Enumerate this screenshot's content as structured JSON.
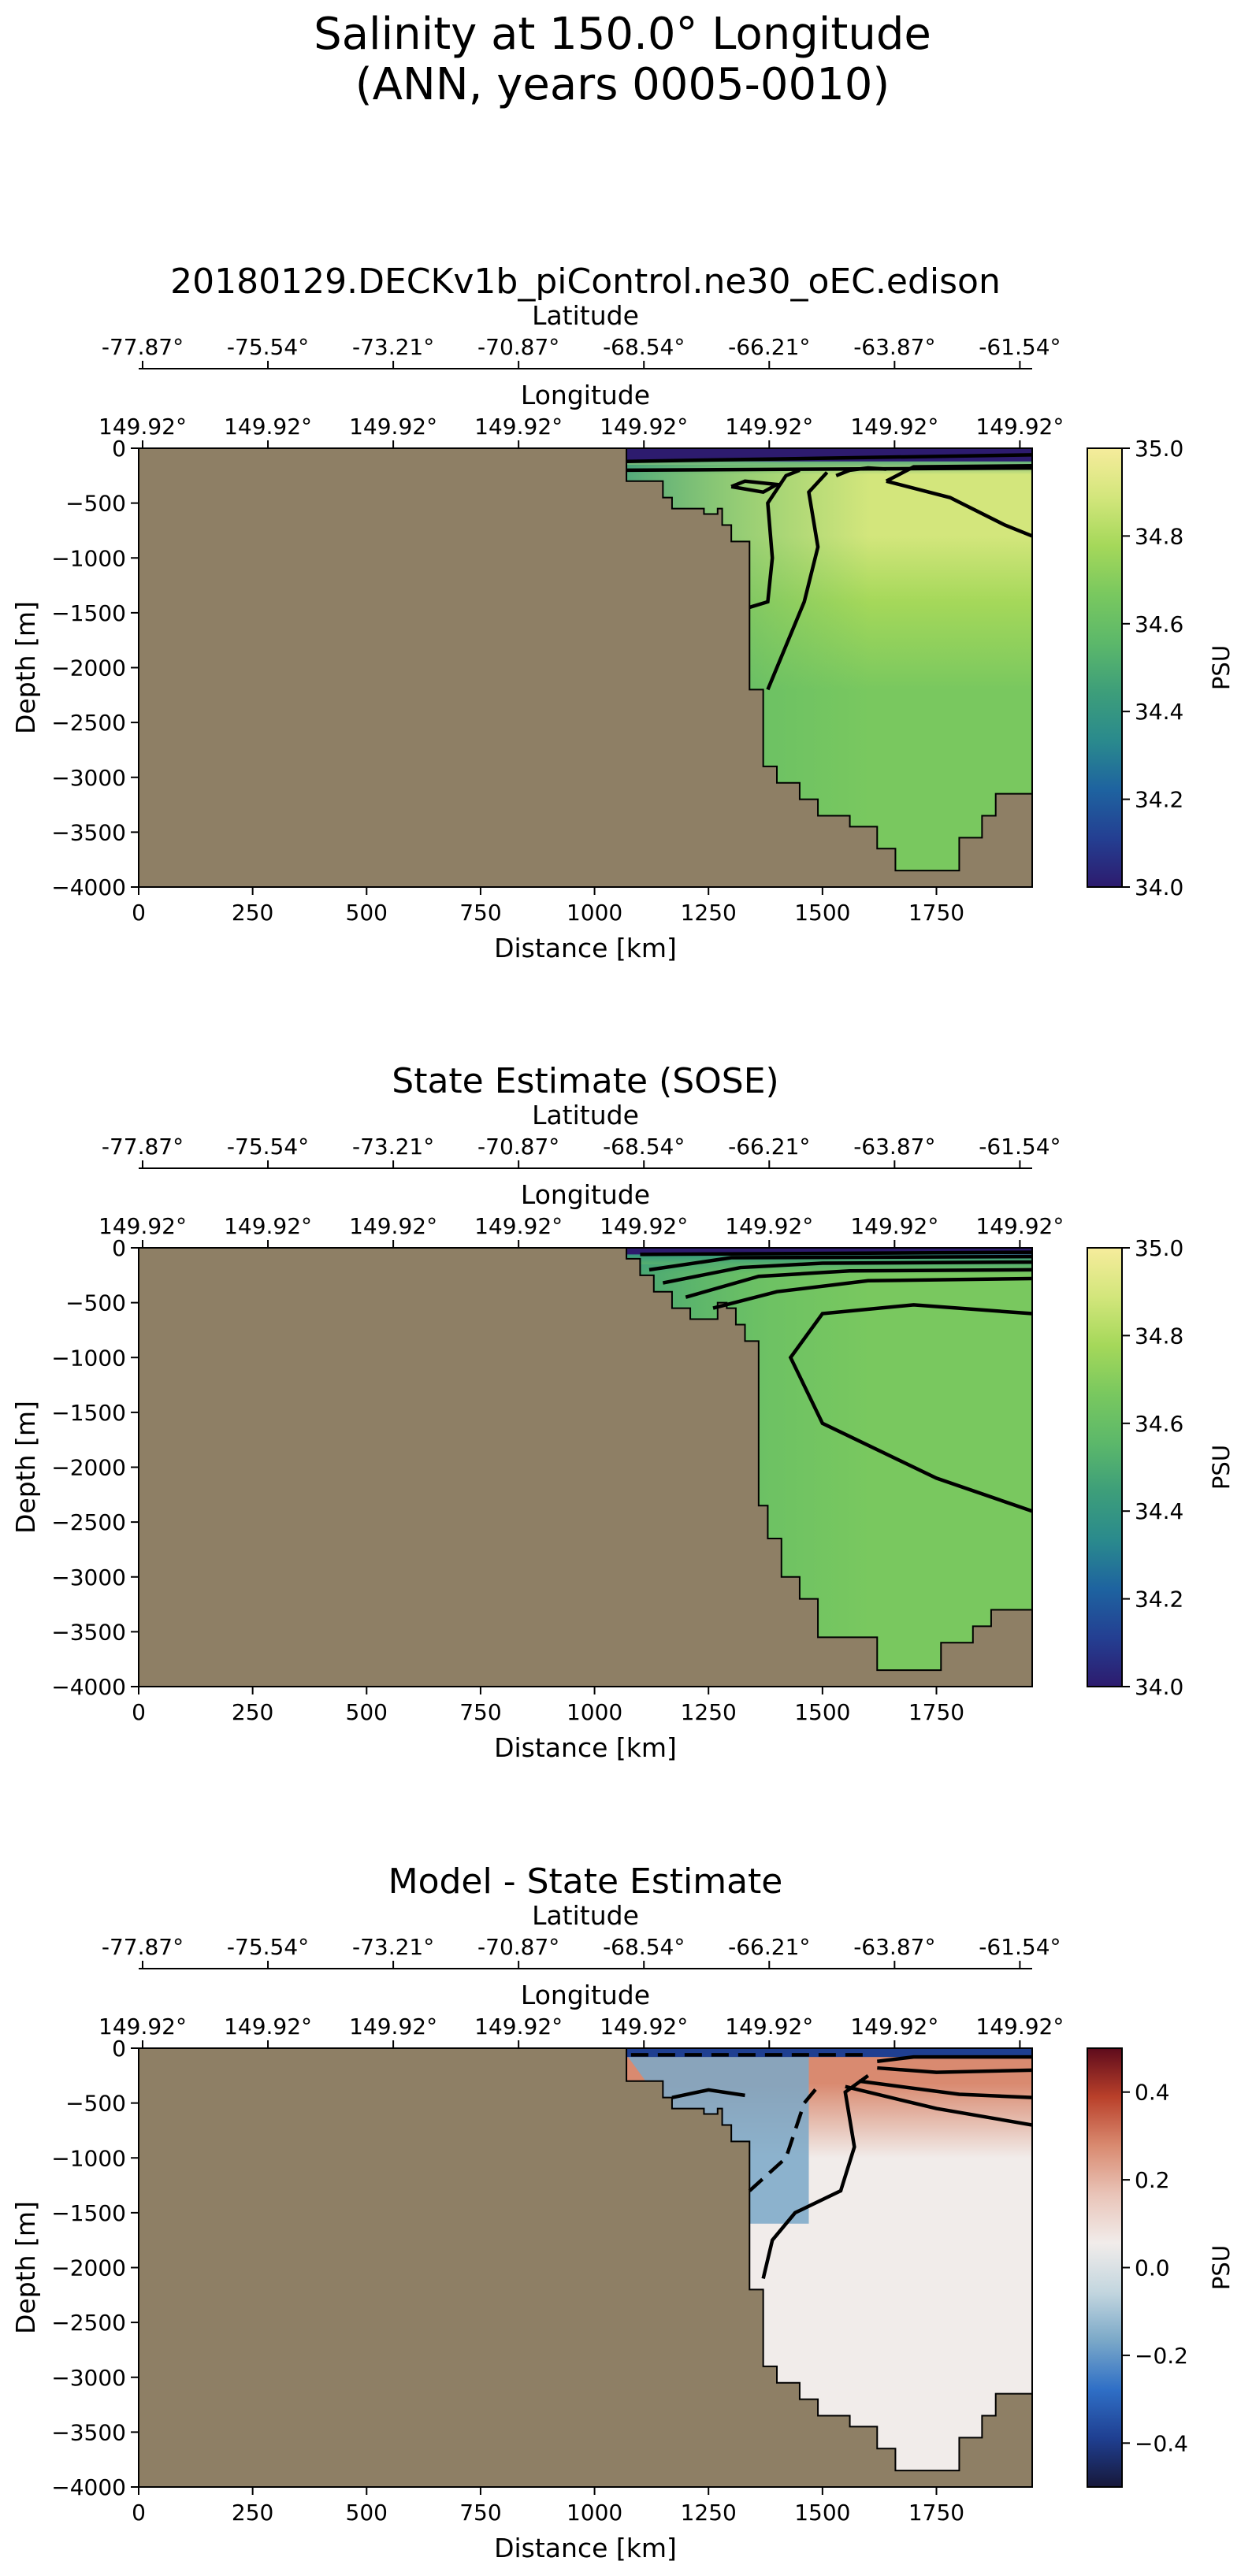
{
  "figure": {
    "title_line1": "Salinity at 150.0° Longitude",
    "title_line2": "(ANN, years 0005-0010)"
  },
  "colors": {
    "land": "#8e7f65",
    "contour": "#000000",
    "viridis_ramp": [
      "#2d1b6e",
      "#243f92",
      "#1e63a0",
      "#2a8a8d",
      "#3d9e7a",
      "#5cb86a",
      "#79c85f",
      "#a5d85a",
      "#d3e67c",
      "#f6ec9c"
    ],
    "balance_ramp": [
      "#17183a",
      "#1f3f91",
      "#2f6fc6",
      "#7aa8c8",
      "#c3d6df",
      "#f1ecea",
      "#e9c4b8",
      "#d98a70",
      "#b9402a",
      "#5e0b1c"
    ]
  },
  "panels": [
    {
      "title": "20180129.DECKv1b_piControl.ne30_oEC.edison",
      "cb_label": "PSU",
      "cb_ticks": [
        "35.0",
        "34.8",
        "34.6",
        "34.4",
        "34.2",
        "34.0"
      ]
    },
    {
      "title": "State Estimate (SOSE)",
      "cb_label": "PSU",
      "cb_ticks": [
        "35.0",
        "34.8",
        "34.6",
        "34.4",
        "34.2",
        "34.0"
      ]
    },
    {
      "title": "Model - State Estimate",
      "cb_label": "PSU",
      "cb_ticks": [
        "0.4",
        "0.2",
        "0.0",
        "−0.2",
        "−0.4"
      ]
    }
  ],
  "chart_data": [
    {
      "type": "heatmap",
      "title": "20180129.DECKv1b_piControl.ne30_oEC.edison",
      "xlabel": "Distance [km]",
      "ylabel": "Depth [m]",
      "top_axis_1_label": "Latitude",
      "top_axis_2_label": "Longitude",
      "xlim": [
        0,
        1960
      ],
      "ylim": [
        -4000,
        0
      ],
      "x_ticks": [
        "0",
        "250",
        "500",
        "750",
        "1000",
        "1250",
        "1500",
        "1750"
      ],
      "y_ticks": [
        "0",
        "−500",
        "−1000",
        "−1500",
        "−2000",
        "−2500",
        "−3000",
        "−3500",
        "−4000"
      ],
      "latitude_ticks": [
        "-77.87°",
        "-75.54°",
        "-73.21°",
        "-70.87°",
        "-68.54°",
        "-66.21°",
        "-63.87°",
        "-61.54°"
      ],
      "longitude_ticks": [
        "149.92°",
        "149.92°",
        "149.92°",
        "149.92°",
        "149.92°",
        "149.92°",
        "149.92°",
        "149.92°"
      ],
      "colorbar": {
        "label": "PSU",
        "min": 34.0,
        "max": 35.0,
        "colormap": "haline",
        "ticks": [
          "35.0",
          "34.8",
          "34.6",
          "34.4",
          "34.2",
          "34.0"
        ]
      },
      "grid": false,
      "bathymetry": [
        [
          1070,
          300
        ],
        [
          1150,
          300
        ],
        [
          1150,
          450
        ],
        [
          1170,
          450
        ],
        [
          1170,
          550
        ],
        [
          1240,
          550
        ],
        [
          1240,
          600
        ],
        [
          1270,
          600
        ],
        [
          1270,
          550
        ],
        [
          1280,
          550
        ],
        [
          1280,
          700
        ],
        [
          1300,
          700
        ],
        [
          1300,
          850
        ],
        [
          1340,
          850
        ],
        [
          1340,
          2200
        ],
        [
          1370,
          2200
        ],
        [
          1370,
          2900
        ],
        [
          1400,
          2900
        ],
        [
          1400,
          3050
        ],
        [
          1450,
          3050
        ],
        [
          1450,
          3200
        ],
        [
          1490,
          3200
        ],
        [
          1490,
          3350
        ],
        [
          1560,
          3350
        ],
        [
          1560,
          3450
        ],
        [
          1620,
          3450
        ],
        [
          1620,
          3650
        ],
        [
          1660,
          3650
        ],
        [
          1660,
          3850
        ],
        [
          1800,
          3850
        ],
        [
          1800,
          3550
        ],
        [
          1850,
          3550
        ],
        [
          1850,
          3350
        ],
        [
          1880,
          3350
        ],
        [
          1880,
          3150
        ],
        [
          1960,
          3150
        ]
      ],
      "salinity_profile": {
        "surface": 34.1,
        "subsurface_max": 34.85,
        "deep": 34.7
      }
    },
    {
      "type": "heatmap",
      "title": "State Estimate (SOSE)",
      "xlabel": "Distance [km]",
      "ylabel": "Depth [m]",
      "top_axis_1_label": "Latitude",
      "top_axis_2_label": "Longitude",
      "xlim": [
        0,
        1960
      ],
      "ylim": [
        -4000,
        0
      ],
      "x_ticks": [
        "0",
        "250",
        "500",
        "750",
        "1000",
        "1250",
        "1500",
        "1750"
      ],
      "y_ticks": [
        "0",
        "−500",
        "−1000",
        "−1500",
        "−2000",
        "−2500",
        "−3000",
        "−3500",
        "−4000"
      ],
      "latitude_ticks": [
        "-77.87°",
        "-75.54°",
        "-73.21°",
        "-70.87°",
        "-68.54°",
        "-66.21°",
        "-63.87°",
        "-61.54°"
      ],
      "longitude_ticks": [
        "149.92°",
        "149.92°",
        "149.92°",
        "149.92°",
        "149.92°",
        "149.92°",
        "149.92°",
        "149.92°"
      ],
      "colorbar": {
        "label": "PSU",
        "min": 34.0,
        "max": 35.0,
        "colormap": "haline",
        "ticks": [
          "35.0",
          "34.8",
          "34.6",
          "34.4",
          "34.2",
          "34.0"
        ]
      },
      "grid": false,
      "bathymetry": [
        [
          1070,
          100
        ],
        [
          1100,
          100
        ],
        [
          1100,
          250
        ],
        [
          1130,
          250
        ],
        [
          1130,
          400
        ],
        [
          1170,
          400
        ],
        [
          1170,
          550
        ],
        [
          1210,
          550
        ],
        [
          1210,
          650
        ],
        [
          1270,
          650
        ],
        [
          1270,
          500
        ],
        [
          1290,
          500
        ],
        [
          1290,
          550
        ],
        [
          1310,
          550
        ],
        [
          1310,
          700
        ],
        [
          1330,
          700
        ],
        [
          1330,
          850
        ],
        [
          1360,
          850
        ],
        [
          1360,
          2350
        ],
        [
          1380,
          2350
        ],
        [
          1380,
          2650
        ],
        [
          1410,
          2650
        ],
        [
          1410,
          3000
        ],
        [
          1450,
          3000
        ],
        [
          1450,
          3200
        ],
        [
          1490,
          3200
        ],
        [
          1490,
          3550
        ],
        [
          1620,
          3550
        ],
        [
          1620,
          3850
        ],
        [
          1760,
          3850
        ],
        [
          1760,
          3600
        ],
        [
          1830,
          3600
        ],
        [
          1830,
          3450
        ],
        [
          1870,
          3450
        ],
        [
          1870,
          3300
        ],
        [
          1960,
          3300
        ]
      ],
      "salinity_profile": {
        "surface": 34.2,
        "subsurface_max": 34.72,
        "deep": 34.67
      }
    },
    {
      "type": "heatmap",
      "title": "Model - State Estimate",
      "xlabel": "Distance [km]",
      "ylabel": "Depth [m]",
      "top_axis_1_label": "Latitude",
      "top_axis_2_label": "Longitude",
      "xlim": [
        0,
        1960
      ],
      "ylim": [
        -4000,
        0
      ],
      "x_ticks": [
        "0",
        "250",
        "500",
        "750",
        "1000",
        "1250",
        "1500",
        "1750"
      ],
      "y_ticks": [
        "0",
        "−500",
        "−1000",
        "−1500",
        "−2000",
        "−2500",
        "−3000",
        "−3500",
        "−4000"
      ],
      "latitude_ticks": [
        "-77.87°",
        "-75.54°",
        "-73.21°",
        "-70.87°",
        "-68.54°",
        "-66.21°",
        "-63.87°",
        "-61.54°"
      ],
      "longitude_ticks": [
        "149.92°",
        "149.92°",
        "149.92°",
        "149.92°",
        "149.92°",
        "149.92°",
        "149.92°",
        "149.92°"
      ],
      "colorbar": {
        "label": "PSU",
        "min": -0.5,
        "max": 0.5,
        "colormap": "balance",
        "ticks": [
          "0.4",
          "0.2",
          "0.0",
          "−0.2",
          "−0.4"
        ]
      },
      "grid": false,
      "bathymetry": [
        [
          1070,
          300
        ],
        [
          1150,
          300
        ],
        [
          1150,
          450
        ],
        [
          1170,
          450
        ],
        [
          1170,
          550
        ],
        [
          1240,
          550
        ],
        [
          1240,
          600
        ],
        [
          1270,
          600
        ],
        [
          1270,
          550
        ],
        [
          1280,
          550
        ],
        [
          1280,
          700
        ],
        [
          1300,
          700
        ],
        [
          1300,
          850
        ],
        [
          1340,
          850
        ],
        [
          1340,
          2200
        ],
        [
          1370,
          2200
        ],
        [
          1370,
          2900
        ],
        [
          1400,
          2900
        ],
        [
          1400,
          3050
        ],
        [
          1450,
          3050
        ],
        [
          1450,
          3200
        ],
        [
          1490,
          3200
        ],
        [
          1490,
          3350
        ],
        [
          1560,
          3350
        ],
        [
          1560,
          3450
        ],
        [
          1620,
          3450
        ],
        [
          1620,
          3650
        ],
        [
          1660,
          3650
        ],
        [
          1660,
          3850
        ],
        [
          1800,
          3850
        ],
        [
          1800,
          3550
        ],
        [
          1850,
          3550
        ],
        [
          1850,
          3350
        ],
        [
          1880,
          3350
        ],
        [
          1880,
          3150
        ],
        [
          1960,
          3150
        ]
      ],
      "anomaly_profile": {
        "surface": -0.4,
        "shelf": -0.15,
        "upper_offshore": 0.25,
        "deep": 0.05
      }
    }
  ]
}
